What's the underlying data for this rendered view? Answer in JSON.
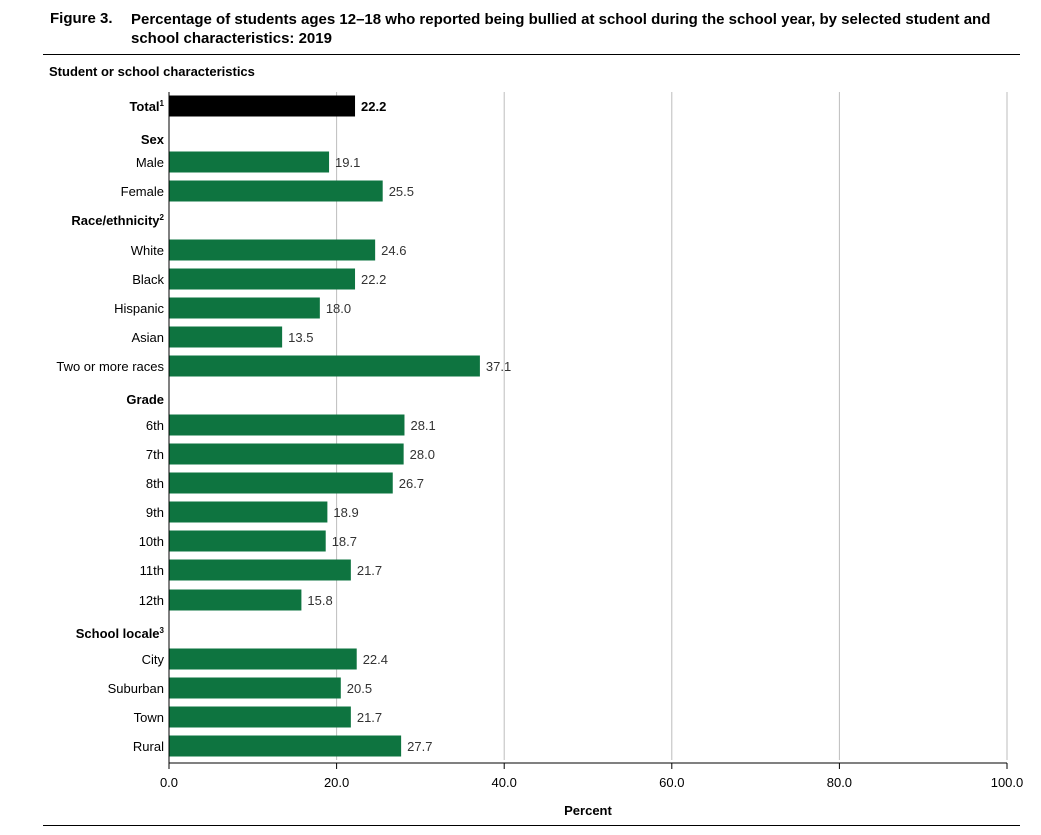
{
  "figure": {
    "number": "Figure 3.",
    "title": "Percentage of students ages 12–18 who reported being bullied at school during the school year, by selected student and school characteristics: 2019",
    "category_axis_header": "Student or school characteristics"
  },
  "colors": {
    "total_bar": "#000000",
    "bar": "#0e7440",
    "gridline": "#bdbdbd"
  },
  "chart_data": {
    "type": "bar",
    "orientation": "horizontal",
    "xlabel": "Percent",
    "xlim": [
      0,
      100
    ],
    "xticks": [
      "0.0",
      "20.0",
      "40.0",
      "60.0",
      "80.0",
      "100.0"
    ],
    "grid": true,
    "rows": [
      {
        "kind": "bar",
        "label": "Total",
        "sup": "1",
        "value": 22.2,
        "value_label": "22.2",
        "total": true
      },
      {
        "kind": "group",
        "label": "Sex",
        "sup": ""
      },
      {
        "kind": "bar",
        "label": "Male",
        "value": 19.1,
        "value_label": "19.1"
      },
      {
        "kind": "bar",
        "label": "Female",
        "value": 25.5,
        "value_label": "25.5"
      },
      {
        "kind": "group",
        "label": "Race/ethnicity",
        "sup": "2"
      },
      {
        "kind": "bar",
        "label": "White",
        "value": 24.6,
        "value_label": "24.6"
      },
      {
        "kind": "bar",
        "label": "Black",
        "value": 22.2,
        "value_label": "22.2"
      },
      {
        "kind": "bar",
        "label": "Hispanic",
        "value": 18.0,
        "value_label": "18.0"
      },
      {
        "kind": "bar",
        "label": "Asian",
        "value": 13.5,
        "value_label": "13.5"
      },
      {
        "kind": "bar",
        "label": "Two or more races",
        "value": 37.1,
        "value_label": "37.1"
      },
      {
        "kind": "group",
        "label": "Grade",
        "sup": ""
      },
      {
        "kind": "bar",
        "label": "6th",
        "value": 28.1,
        "value_label": "28.1"
      },
      {
        "kind": "bar",
        "label": "7th",
        "value": 28.0,
        "value_label": "28.0"
      },
      {
        "kind": "bar",
        "label": "8th",
        "value": 26.7,
        "value_label": "26.7"
      },
      {
        "kind": "bar",
        "label": "9th",
        "value": 18.9,
        "value_label": "18.9"
      },
      {
        "kind": "bar",
        "label": "10th",
        "value": 18.7,
        "value_label": "18.7"
      },
      {
        "kind": "bar",
        "label": "11th",
        "value": 21.7,
        "value_label": "21.7"
      },
      {
        "kind": "bar",
        "label": "12th",
        "value": 15.8,
        "value_label": "15.8"
      },
      {
        "kind": "group",
        "label": "School locale",
        "sup": "3"
      },
      {
        "kind": "bar",
        "label": "City",
        "value": 22.4,
        "value_label": "22.4"
      },
      {
        "kind": "bar",
        "label": "Suburban",
        "value": 20.5,
        "value_label": "20.5"
      },
      {
        "kind": "bar",
        "label": "Town",
        "value": 21.7,
        "value_label": "21.7"
      },
      {
        "kind": "bar",
        "label": "Rural",
        "value": 27.7,
        "value_label": "27.7"
      }
    ]
  }
}
